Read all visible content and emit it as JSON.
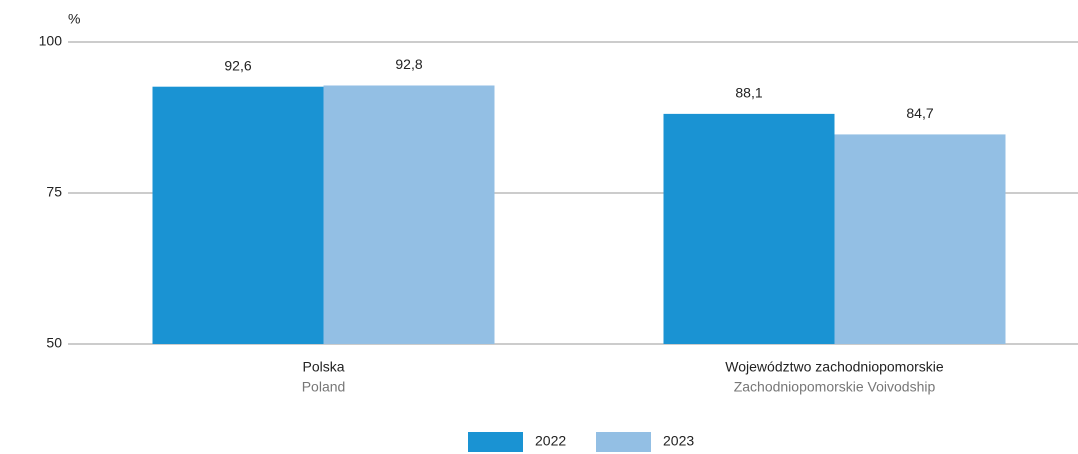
{
  "chart_data": {
    "type": "bar",
    "unit_label": "%",
    "categories": [
      [
        "Polska",
        "Poland"
      ],
      [
        "Województwo zachodniopomorskie",
        "Zachodniopomorskie Voivodship"
      ]
    ],
    "series": [
      {
        "name": "2022",
        "color": "#1a93d3",
        "values": [
          92.6,
          88.1
        ],
        "value_labels": [
          "92,6",
          "88,1"
        ]
      },
      {
        "name": "2023",
        "color": "#93bfe4",
        "values": [
          92.8,
          84.7
        ],
        "value_labels": [
          "92,8",
          "84,7"
        ]
      }
    ],
    "ylim": [
      50,
      100
    ],
    "yticks": [
      50,
      75,
      100
    ],
    "grid": true,
    "legend": "bottom"
  }
}
